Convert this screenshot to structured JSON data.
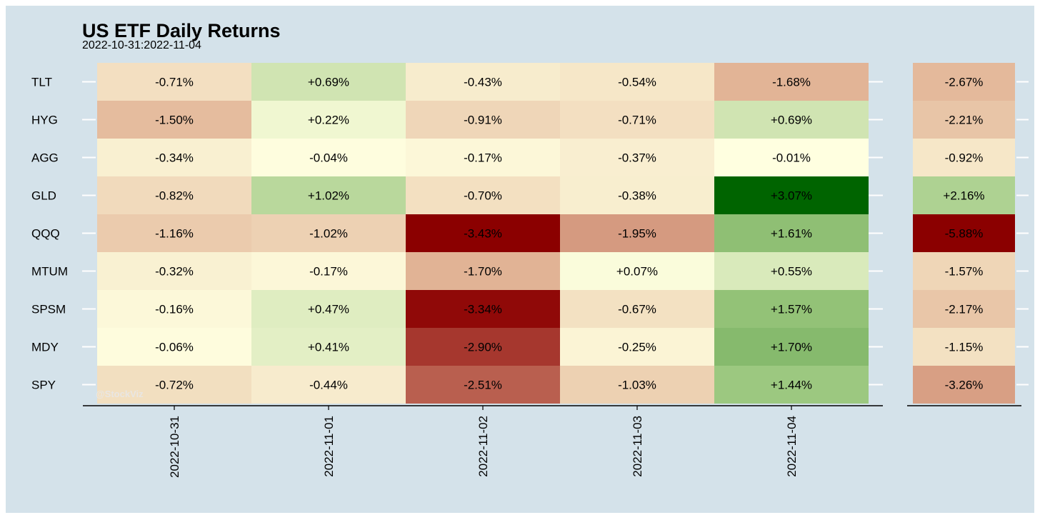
{
  "chart_data": {
    "type": "heatmap",
    "title": "US ETF Daily Returns",
    "subtitle": "2022-10-31:2022-11-04",
    "rows": [
      "TLT",
      "HYG",
      "AGG",
      "GLD",
      "QQQ",
      "MTUM",
      "SPSM",
      "MDY",
      "SPY"
    ],
    "columns": [
      "2022-10-31",
      "2022-11-01",
      "2022-11-02",
      "2022-11-03",
      "2022-11-04"
    ],
    "values": [
      [
        -0.71,
        0.69,
        -0.43,
        -0.54,
        -1.68
      ],
      [
        -1.5,
        0.22,
        -0.91,
        -0.71,
        0.69
      ],
      [
        -0.34,
        -0.04,
        -0.17,
        -0.37,
        -0.01
      ],
      [
        -0.82,
        1.02,
        -0.7,
        -0.38,
        3.07
      ],
      [
        -1.16,
        -1.02,
        -3.43,
        -1.95,
        1.61
      ],
      [
        -0.32,
        -0.17,
        -1.7,
        0.07,
        0.55
      ],
      [
        -0.16,
        0.47,
        -3.34,
        -0.67,
        1.57
      ],
      [
        -0.06,
        0.41,
        -2.9,
        -0.25,
        1.7
      ],
      [
        -0.72,
        -0.44,
        -2.51,
        -1.03,
        1.44
      ]
    ],
    "cumulative": [
      -2.67,
      -2.21,
      -0.92,
      2.16,
      -5.88,
      -1.57,
      -2.17,
      -1.15,
      -3.26
    ],
    "value_format": "percent-signed-2dp",
    "color_scale": {
      "negative": "#8b0000",
      "zero": "#ffffe0",
      "positive": "#006400"
    },
    "watermark": "@StockViz"
  }
}
